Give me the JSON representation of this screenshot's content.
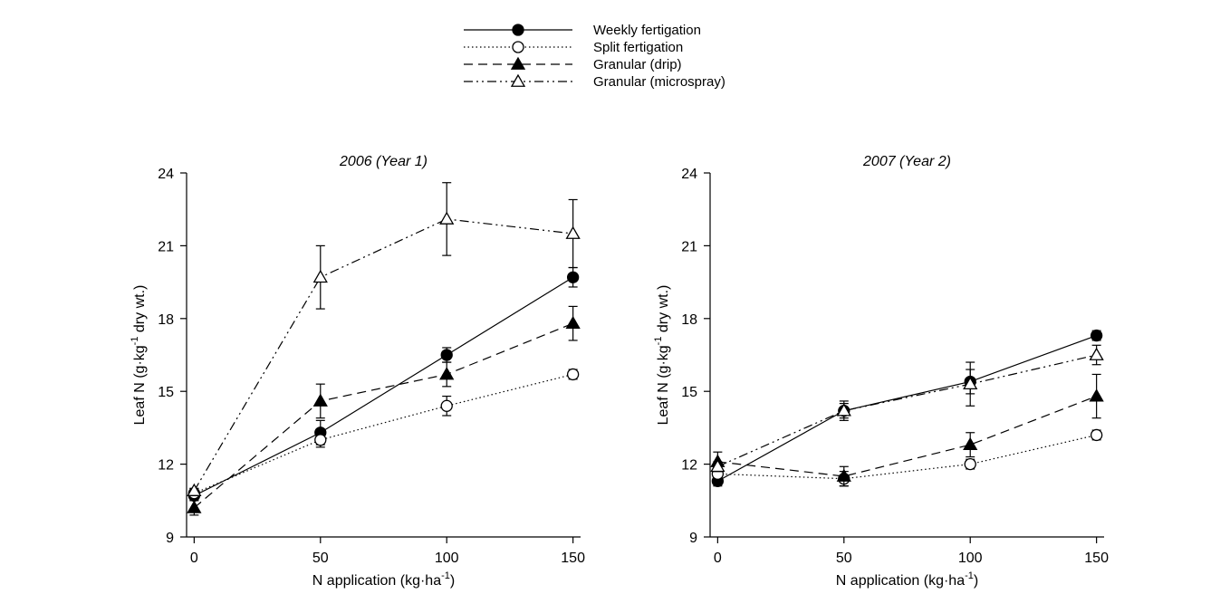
{
  "legend": {
    "placement": "top-center",
    "entries": [
      {
        "label": "Weekly fertigation",
        "marker": "filled-circle",
        "line": "solid"
      },
      {
        "label": "Split fertigation",
        "marker": "open-circle",
        "line": "dotted"
      },
      {
        "label": "Granular (drip)",
        "marker": "filled-triangle",
        "line": "dashed"
      },
      {
        "label": "Granular (microspray)",
        "marker": "open-triangle",
        "line": "dash-dot-dot"
      }
    ]
  },
  "chart_data": [
    {
      "type": "line",
      "title": "2006 (Year 1)",
      "xlabel": "N application (kg·ha",
      "xlabel_sup": "-1",
      "xlabel_tail": ")",
      "ylabel": "Leaf N (g·kg",
      "ylabel_sup": "-1",
      "ylabel_tail": " dry wt.)",
      "x": [
        0,
        50,
        100,
        150
      ],
      "xticks": [
        0,
        50,
        100,
        150
      ],
      "yticks": [
        9,
        12,
        15,
        18,
        21,
        24
      ],
      "xlim": [
        -3,
        153
      ],
      "ylim": [
        9,
        24
      ],
      "grid": false,
      "series": [
        {
          "name": "Weekly fertigation",
          "values": [
            10.7,
            13.3,
            16.5,
            19.7
          ],
          "errors": [
            0.2,
            0.5,
            0.3,
            0.4
          ]
        },
        {
          "name": "Split fertigation",
          "values": [
            10.8,
            13.0,
            14.4,
            15.7
          ],
          "errors": [
            0.2,
            0.3,
            0.4,
            0.2
          ]
        },
        {
          "name": "Granular (drip)",
          "values": [
            10.2,
            14.6,
            15.7,
            17.8
          ],
          "errors": [
            0.3,
            0.7,
            0.5,
            0.7
          ]
        },
        {
          "name": "Granular (microspray)",
          "values": [
            10.9,
            19.7,
            22.1,
            21.5
          ],
          "errors": [
            0.1,
            1.3,
            1.5,
            1.4
          ]
        }
      ]
    },
    {
      "type": "line",
      "title": "2007 (Year 2)",
      "xlabel": "N application (kg·ha",
      "xlabel_sup": "-1",
      "xlabel_tail": ")",
      "ylabel": "Leaf N (g·kg",
      "ylabel_sup": "-1",
      "ylabel_tail": " dry wt.)",
      "x": [
        0,
        50,
        100,
        150
      ],
      "xticks": [
        0,
        50,
        100,
        150
      ],
      "yticks": [
        9,
        12,
        15,
        18,
        21,
        24
      ],
      "xlim": [
        -3,
        153
      ],
      "ylim": [
        9,
        24
      ],
      "grid": false,
      "series": [
        {
          "name": "Weekly fertigation",
          "values": [
            11.3,
            14.2,
            15.4,
            17.3
          ],
          "errors": [
            0.2,
            0.4,
            0.5,
            0.2
          ]
        },
        {
          "name": "Split fertigation",
          "values": [
            11.6,
            11.4,
            12.0,
            13.2
          ],
          "errors": [
            0.2,
            0.3,
            0.2,
            0.2
          ]
        },
        {
          "name": "Granular (drip)",
          "values": [
            12.1,
            11.5,
            12.8,
            14.8
          ],
          "errors": [
            0.4,
            0.4,
            0.5,
            0.9
          ]
        },
        {
          "name": "Granular (microspray)",
          "values": [
            11.9,
            14.2,
            15.3,
            16.5
          ],
          "errors": [
            0.2,
            0.3,
            0.9,
            0.4
          ]
        }
      ]
    }
  ]
}
